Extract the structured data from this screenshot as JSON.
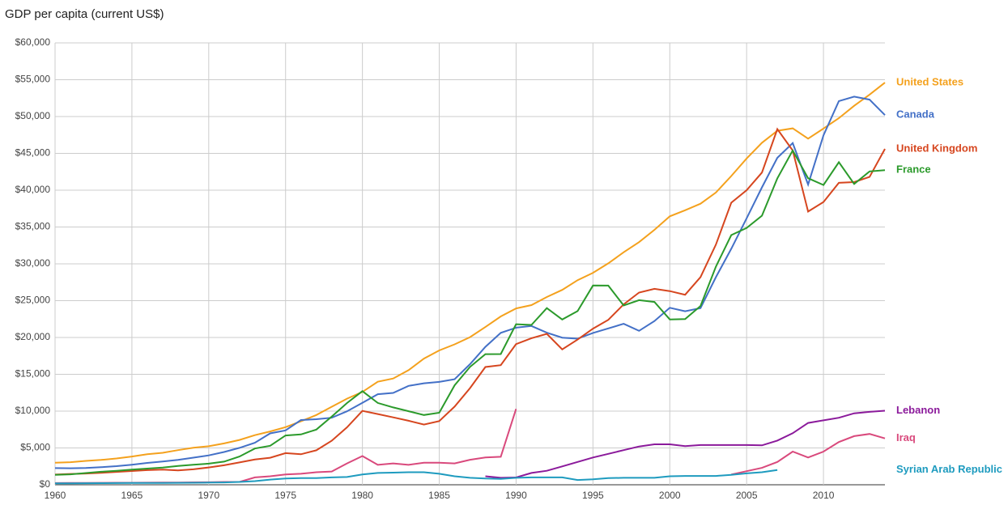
{
  "chart_data": {
    "type": "line",
    "title": "GDP per capita (current US$)",
    "x": [
      1960,
      1961,
      1962,
      1963,
      1964,
      1965,
      1966,
      1967,
      1968,
      1969,
      1970,
      1971,
      1972,
      1973,
      1974,
      1975,
      1976,
      1977,
      1978,
      1979,
      1980,
      1981,
      1982,
      1983,
      1984,
      1985,
      1986,
      1987,
      1988,
      1989,
      1990,
      1991,
      1992,
      1993,
      1994,
      1995,
      1996,
      1997,
      1998,
      1999,
      2000,
      2001,
      2002,
      2003,
      2004,
      2005,
      2006,
      2007,
      2008,
      2009,
      2010,
      2011,
      2012,
      2013,
      2014
    ],
    "xlim": [
      1960,
      2014
    ],
    "xticks": [
      1960,
      1965,
      1970,
      1975,
      1980,
      1985,
      1990,
      1995,
      2000,
      2005,
      2010
    ],
    "ylim": [
      0,
      60000
    ],
    "yticks": [
      {
        "value": 0,
        "label": "$0"
      },
      {
        "value": 5000,
        "label": "$5,000"
      },
      {
        "value": 10000,
        "label": "$10,000"
      },
      {
        "value": 15000,
        "label": "$15,000"
      },
      {
        "value": 20000,
        "label": "$20,000"
      },
      {
        "value": 25000,
        "label": "$25,000"
      },
      {
        "value": 30000,
        "label": "$30,000"
      },
      {
        "value": 35000,
        "label": "$35,000"
      },
      {
        "value": 40000,
        "label": "$40,000"
      },
      {
        "value": 45000,
        "label": "$45,000"
      },
      {
        "value": 50000,
        "label": "$50,000"
      },
      {
        "value": 55000,
        "label": "$55,000"
      },
      {
        "value": 60000,
        "label": "$60,000"
      }
    ],
    "grid": true,
    "series": [
      {
        "name": "United States",
        "color": "#f4a11d",
        "values": [
          3000,
          3070,
          3240,
          3370,
          3570,
          3830,
          4150,
          4340,
          4700,
          5030,
          5230,
          5610,
          6090,
          6740,
          7240,
          7820,
          8610,
          9470,
          10590,
          11690,
          12600,
          13990,
          14430,
          15560,
          17130,
          18240,
          19070,
          20040,
          21420,
          22860,
          23950,
          24400,
          25490,
          26460,
          27780,
          28780,
          30070,
          31570,
          32950,
          34620,
          36450,
          37270,
          38170,
          39680,
          41920,
          44310,
          46440,
          48070,
          48400,
          47000,
          48370,
          49780,
          51460,
          52980,
          54600
        ]
      },
      {
        "name": "Canada",
        "color": "#4370c7",
        "values": [
          2260,
          2240,
          2270,
          2380,
          2530,
          2720,
          2970,
          3160,
          3390,
          3680,
          3990,
          4450,
          5010,
          5700,
          6980,
          7390,
          8790,
          8900,
          9100,
          9980,
          11130,
          12300,
          12470,
          13430,
          13780,
          13970,
          14330,
          16370,
          18720,
          20630,
          21330,
          21560,
          20650,
          19980,
          19830,
          20610,
          21230,
          21860,
          20900,
          22230,
          24030,
          23560,
          23990,
          28190,
          32040,
          36190,
          40390,
          44400,
          46400,
          40770,
          47450,
          52100,
          52700,
          52300,
          50200
        ]
      },
      {
        "name": "United Kingdom",
        "color": "#d6461f",
        "values": [
          1380,
          1470,
          1530,
          1610,
          1750,
          1870,
          1990,
          2060,
          1950,
          2100,
          2350,
          2650,
          3030,
          3430,
          3670,
          4300,
          4140,
          4680,
          5980,
          7800,
          10030,
          9600,
          9150,
          8690,
          8180,
          8650,
          10610,
          13120,
          15990,
          16240,
          19100,
          19900,
          20490,
          18390,
          19710,
          21200,
          22400,
          24500,
          26100,
          26600,
          26300,
          25800,
          28200,
          32600,
          38300,
          40000,
          42400,
          48300,
          45400,
          37100,
          38400,
          41000,
          41100,
          41800,
          45600
        ]
      },
      {
        "name": "France",
        "color": "#2b9a2b",
        "values": [
          1340,
          1420,
          1590,
          1770,
          1900,
          2050,
          2200,
          2330,
          2550,
          2730,
          2870,
          3140,
          3830,
          4920,
          5300,
          6690,
          6840,
          7490,
          9250,
          11100,
          12710,
          11110,
          10500,
          9990,
          9470,
          9780,
          13500,
          16000,
          17740,
          17750,
          21800,
          21700,
          23990,
          22440,
          23580,
          27050,
          27040,
          24350,
          25070,
          24820,
          22450,
          22500,
          24270,
          29620,
          33900,
          34880,
          36540,
          41600,
          45400,
          41630,
          40700,
          43800,
          40850,
          42550,
          42730
        ]
      },
      {
        "name": "Lebanon",
        "color": "#8b1a9b",
        "values": [
          null,
          null,
          null,
          null,
          null,
          null,
          null,
          null,
          null,
          null,
          null,
          null,
          null,
          null,
          null,
          null,
          null,
          null,
          null,
          null,
          null,
          null,
          null,
          null,
          null,
          null,
          null,
          null,
          1150,
          950,
          990,
          1600,
          1900,
          2500,
          3100,
          3700,
          4200,
          4700,
          5200,
          5500,
          5500,
          5250,
          5400,
          5400,
          5400,
          5400,
          5350,
          6000,
          7000,
          8400,
          8750,
          9100,
          9700,
          9900,
          10050
        ]
      },
      {
        "name": "Iraq",
        "color": "#d9497c",
        "values": [
          230,
          240,
          250,
          260,
          270,
          280,
          290,
          300,
          310,
          330,
          340,
          380,
          390,
          1000,
          1150,
          1400,
          1500,
          1700,
          1800,
          2900,
          3900,
          2700,
          2900,
          2700,
          3000,
          3000,
          2900,
          3400,
          3700,
          3800,
          10300,
          null,
          null,
          null,
          null,
          null,
          null,
          null,
          null,
          null,
          null,
          null,
          null,
          null,
          1400,
          1850,
          2300,
          3100,
          4500,
          3700,
          4500,
          5800,
          6600,
          6900,
          6300
        ]
      },
      {
        "name": "Syrian Arab Republic",
        "color": "#1e9bbf",
        "values": [
          190,
          200,
          210,
          220,
          230,
          240,
          240,
          250,
          260,
          280,
          300,
          320,
          380,
          500,
          700,
          850,
          900,
          900,
          1000,
          1050,
          1400,
          1600,
          1650,
          1700,
          1700,
          1500,
          1150,
          950,
          850,
          800,
          950,
          1000,
          1000,
          1000,
          650,
          750,
          900,
          950,
          950,
          950,
          1150,
          1200,
          1200,
          1200,
          1350,
          1550,
          1700,
          2000,
          null,
          null,
          null,
          null,
          null,
          null,
          null
        ]
      }
    ]
  }
}
